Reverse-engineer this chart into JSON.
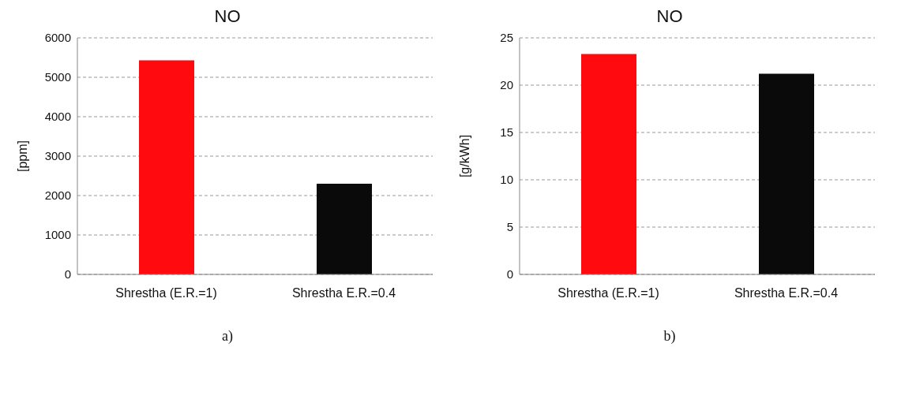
{
  "chart_data": [
    {
      "type": "bar",
      "title": "NO",
      "ylabel": "[ppm]",
      "categories": [
        "Shrestha (E.R.=1)",
        "Shrestha E.R.=0.4"
      ],
      "values": [
        5430,
        2300
      ],
      "colors": [
        "#ff0a0f",
        "#0a0a0a"
      ],
      "ylim": [
        0,
        6000
      ],
      "yticks": [
        0,
        1000,
        2000,
        3000,
        4000,
        5000,
        6000
      ],
      "grid": "y",
      "legend": false,
      "annotations": [
        "a)"
      ]
    },
    {
      "type": "bar",
      "title": "NO",
      "ylabel": "[g/kWh]",
      "categories": [
        "Shrestha (E.R.=1)",
        "Shrestha E.R.=0.4"
      ],
      "values": [
        23.3,
        21.2
      ],
      "colors": [
        "#ff0a0f",
        "#0a0a0a"
      ],
      "ylim": [
        0,
        25
      ],
      "yticks": [
        0,
        5,
        10,
        15,
        20,
        25
      ],
      "grid": "y",
      "legend": false,
      "annotations": [
        "b)"
      ]
    }
  ]
}
